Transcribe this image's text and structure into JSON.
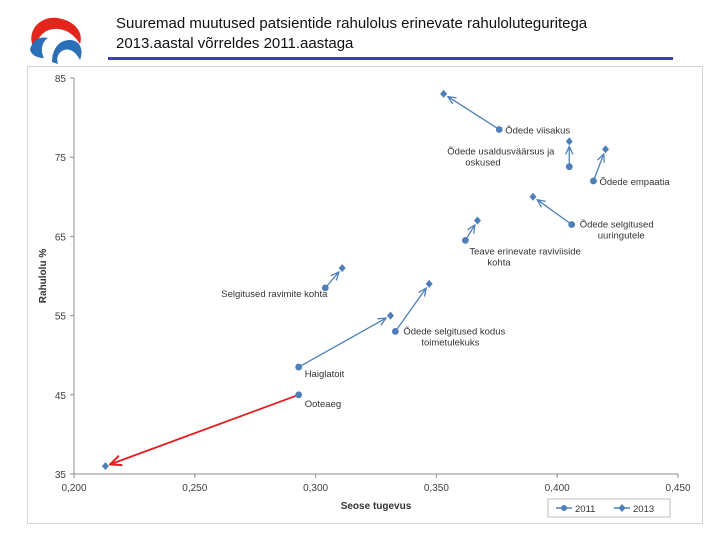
{
  "header": {
    "title_line1": "Suuremad muutused patsientide rahulolus erinevate rahuloluteguritega",
    "title_line2": "2013.aastal võrreldes 2011.aastaga"
  },
  "logo": {
    "icon": "organization-logo-icon",
    "colors": [
      "#e2261c",
      "#2b6fb6"
    ]
  },
  "colors": {
    "series": "#4f7fb8",
    "arrow": "#4f7fb8",
    "highlight_arrow": "#e02020",
    "title_rule": "#3d3fb8"
  },
  "chart_data": {
    "type": "scatter",
    "xlabel": "Seose tugevus",
    "ylabel": "Rahulolu %",
    "xlim": [
      0.2,
      0.45
    ],
    "ylim": [
      35,
      85
    ],
    "xticks": [
      0.2,
      0.25,
      0.3,
      0.35,
      0.4,
      0.45
    ],
    "xtick_labels": [
      "0,200",
      "0,250",
      "0,300",
      "0,350",
      "0,400",
      "0,450"
    ],
    "yticks": [
      35,
      45,
      55,
      65,
      75,
      85
    ],
    "ytick_labels": [
      "35",
      "45",
      "55",
      "65",
      "75",
      "85"
    ],
    "legend": {
      "placement": "bottom-right",
      "entries": [
        "2011",
        "2013"
      ]
    },
    "series": [
      {
        "name": "2011",
        "marker": "circle"
      },
      {
        "name": "2013",
        "marker": "diamond"
      }
    ],
    "pairs": [
      {
        "label": "Õdede viisakus",
        "y2011": {
          "x": 0.376,
          "y": 78.5
        },
        "y2013": {
          "x": 0.353,
          "y": 83
        }
      },
      {
        "label": "Õdede usaldusväärsus ja oskused",
        "y2011": {
          "x": 0.405,
          "y": 73.8
        },
        "y2013": {
          "x": 0.405,
          "y": 77
        }
      },
      {
        "label": "Õdede empaatia",
        "y2011": {
          "x": 0.415,
          "y": 72
        },
        "y2013": {
          "x": 0.42,
          "y": 76
        }
      },
      {
        "label": "Õdede selgitused uuringutele",
        "y2011": {
          "x": 0.406,
          "y": 66.5
        },
        "y2013": {
          "x": 0.39,
          "y": 70
        }
      },
      {
        "label": "Teave erinevate raviviiside kohta",
        "y2011": {
          "x": 0.362,
          "y": 64.5
        },
        "y2013": {
          "x": 0.367,
          "y": 67
        }
      },
      {
        "label": "Selgitused ravimite kohta",
        "y2011": {
          "x": 0.304,
          "y": 58.5
        },
        "y2013": {
          "x": 0.311,
          "y": 61
        }
      },
      {
        "label": "Õdede selgitused kodus toimetulekuks",
        "y2011": {
          "x": 0.333,
          "y": 53
        },
        "y2013": {
          "x": 0.347,
          "y": 59
        }
      },
      {
        "label": "Haiglatoit",
        "y2011": {
          "x": 0.293,
          "y": 48.5
        },
        "y2013": {
          "x": 0.331,
          "y": 55
        }
      },
      {
        "label": "Ooteaeg",
        "y2011": {
          "x": 0.293,
          "y": 45
        },
        "y2013": {
          "x": 0.213,
          "y": 36
        },
        "highlight": true
      }
    ]
  }
}
